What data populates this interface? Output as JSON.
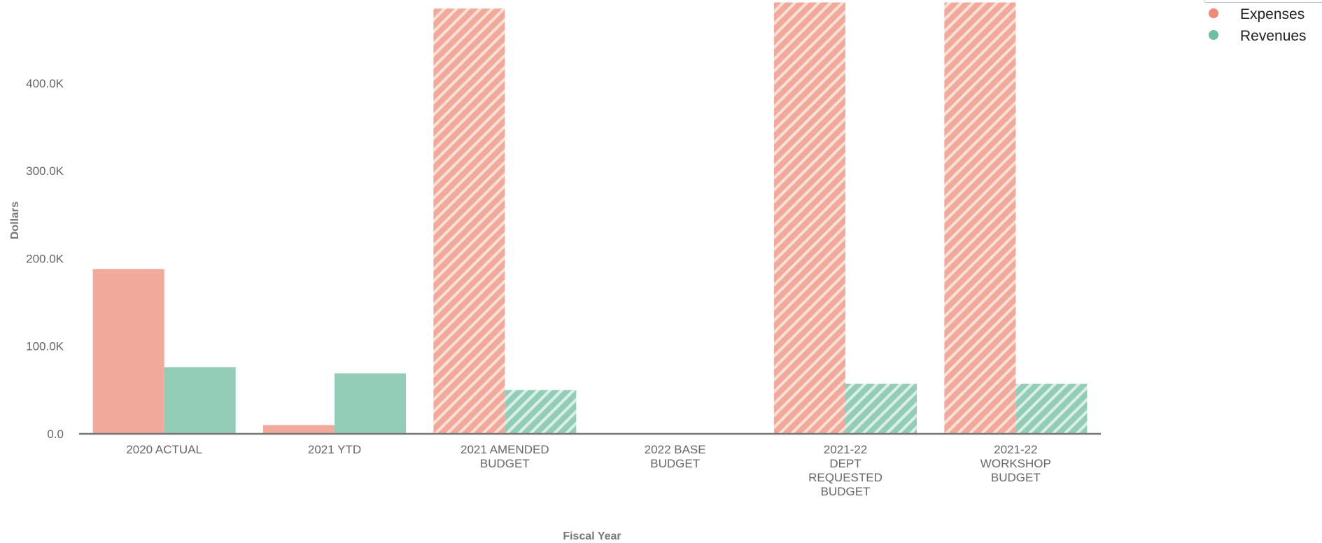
{
  "chart_data": {
    "type": "bar",
    "xlabel": "Fiscal Year",
    "ylabel": "Dollars",
    "ylim": [
      0,
      490000
    ],
    "yticks": [
      {
        "value": 0,
        "label": "0.0"
      },
      {
        "value": 100000,
        "label": "100.0K"
      },
      {
        "value": 200000,
        "label": "200.0K"
      },
      {
        "value": 300000,
        "label": "300.0K"
      },
      {
        "value": 400000,
        "label": "400.0K"
      }
    ],
    "categories": [
      {
        "label": [
          "2020 ACTUAL"
        ],
        "hatched": false
      },
      {
        "label": [
          "2021 YTD"
        ],
        "hatched": false
      },
      {
        "label": [
          "2021 AMENDED",
          "BUDGET"
        ],
        "hatched": true
      },
      {
        "label": [
          "2022 BASE",
          "BUDGET"
        ],
        "hatched": true
      },
      {
        "label": [
          "2021-22",
          "DEPT",
          "REQUESTED",
          "BUDGET"
        ],
        "hatched": true
      },
      {
        "label": [
          "2021-22",
          "WORKSHOP",
          "BUDGET"
        ],
        "hatched": true
      }
    ],
    "series": [
      {
        "name": "Expenses",
        "color": "#f0a99b",
        "legend_color": "#ee8a78",
        "values": [
          188000,
          10000,
          485000,
          0,
          492000,
          492000
        ]
      },
      {
        "name": "Revenues",
        "color": "#93cdb8",
        "legend_color": "#6dbf9f",
        "values": [
          76000,
          69000,
          50000,
          0,
          57000,
          57000
        ]
      }
    ],
    "legend": {
      "position": "top-right"
    }
  }
}
